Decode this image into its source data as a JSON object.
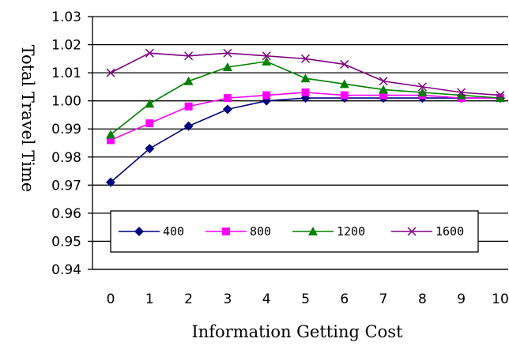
{
  "chart_data": {
    "type": "line",
    "title": "",
    "xlabel": "Information Getting Cost",
    "ylabel": "Total Travel Time",
    "x": [
      0,
      1,
      2,
      3,
      4,
      5,
      6,
      7,
      8,
      9,
      10
    ],
    "x_tick_labels": [
      "0",
      "1",
      "2",
      "3",
      "4",
      "5",
      "6",
      "7",
      "8",
      "9",
      "10"
    ],
    "y_tick_labels": [
      "1.03",
      "1.02",
      "1.01",
      "1.00",
      "0.99",
      "0.98",
      "0.97",
      "0.96",
      "0.95",
      "0.94"
    ],
    "ylim": [
      0.94,
      1.03
    ],
    "grid": "horizontal",
    "legend_placement": "bottom-left inside",
    "series": [
      {
        "name": "400",
        "color": "#000080",
        "marker": "diamond",
        "values": [
          0.971,
          0.983,
          0.991,
          0.997,
          1.0,
          1.001,
          1.001,
          1.001,
          1.001,
          1.001,
          1.001
        ]
      },
      {
        "name": "800",
        "color": "#ff00ff",
        "marker": "square",
        "values": [
          0.986,
          0.992,
          0.998,
          1.001,
          1.002,
          1.003,
          1.002,
          1.002,
          1.002,
          1.001,
          1.001
        ]
      },
      {
        "name": "1200",
        "color": "#008000",
        "marker": "triangle",
        "values": [
          0.988,
          0.999,
          1.007,
          1.012,
          1.014,
          1.008,
          1.006,
          1.004,
          1.003,
          1.002,
          1.001
        ]
      },
      {
        "name": "1600",
        "color": "#800080",
        "marker": "x",
        "values": [
          1.01,
          1.017,
          1.016,
          1.017,
          1.016,
          1.015,
          1.013,
          1.007,
          1.005,
          1.003,
          1.002
        ]
      }
    ]
  }
}
